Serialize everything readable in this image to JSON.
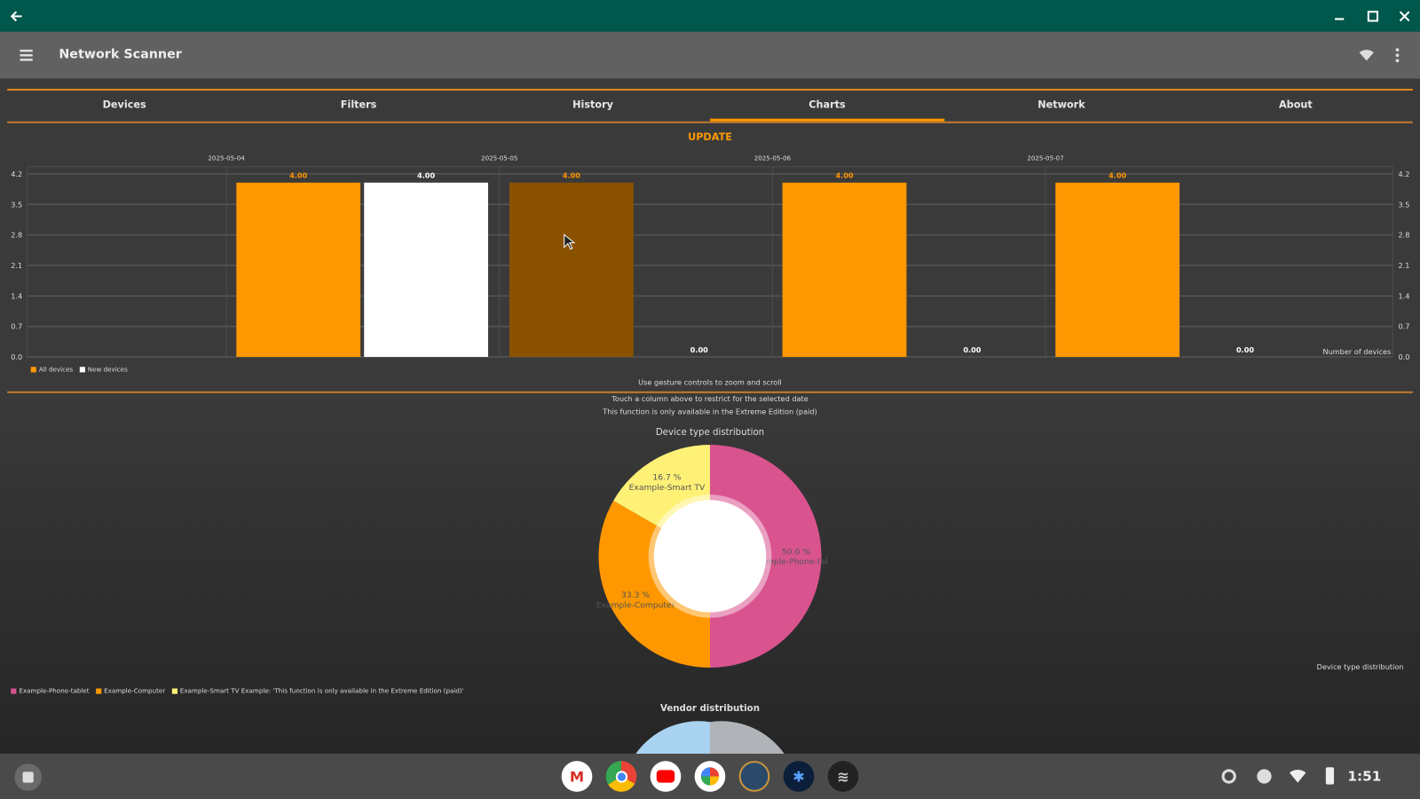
{
  "window": {
    "back_icon": "arrow-left",
    "controls": [
      "minimize",
      "maximize",
      "close"
    ]
  },
  "appbar": {
    "title": "Network Scanner",
    "menu_icon": "hamburger",
    "wifi_icon": "wifi",
    "more_icon": "more-vertical"
  },
  "tabs": [
    {
      "label": "Devices"
    },
    {
      "label": "Filters"
    },
    {
      "label": "History"
    },
    {
      "label": "Charts",
      "active": true
    },
    {
      "label": "Network"
    },
    {
      "label": "About"
    }
  ],
  "update_label": "UPDATE",
  "chart_data": [
    {
      "type": "bar",
      "title": "",
      "categories": [
        "2025-05-04",
        "2025-05-05",
        "2025-05-06",
        "2025-05-07"
      ],
      "series": [
        {
          "name": "All devices",
          "color": "#ff9800",
          "values": [
            4,
            4,
            4,
            4
          ],
          "labels": [
            "4.00",
            "4.00",
            "4.00",
            "4.00"
          ]
        },
        {
          "name": "New devices",
          "color": "#ffffff",
          "values": [
            4,
            0,
            0,
            0
          ],
          "labels": [
            "4.00",
            "0.00",
            "0.00",
            "0.00"
          ]
        }
      ],
      "highlighted": {
        "series": 0,
        "index": 1,
        "color": "#8a5200"
      },
      "ylabel": "Number of devices",
      "ylim": [
        0,
        4.2
      ],
      "yticks": [
        "0.0",
        "0.7",
        "1.4",
        "2.1",
        "2.8",
        "3.5",
        "4.2"
      ],
      "grid": true,
      "legend": "bottom-left"
    },
    {
      "type": "pie",
      "title": "Device type distribution",
      "slices": [
        {
          "name": "Example-Phone-tablet",
          "value": 50.0,
          "label": "50.0 %",
          "color": "#d9538f"
        },
        {
          "name": "Example-Computer",
          "value": 33.3,
          "label": "33.3 %",
          "color": "#ff9800"
        },
        {
          "name": "Example-Smart TV",
          "value": 16.7,
          "label": "16.7 %",
          "color": "#fff176"
        }
      ],
      "legend_extra": "Example: 'This function is only available in the Extreme Edition (paid)'",
      "description": "Device type distribution",
      "legend": "bottom-left"
    },
    {
      "type": "pie",
      "title": "Vendor distribution",
      "slices": [
        {
          "name": "",
          "value": 50,
          "color": "#a9d3f0"
        },
        {
          "name": "",
          "value": 50,
          "color": "#b0b4b8"
        }
      ]
    }
  ],
  "info": {
    "gesture": "Use gesture controls to zoom and scroll",
    "touch": "Touch a column above to restrict for the selected date",
    "paid": "This function is only available in the Extreme Edition (paid)"
  },
  "taskbar": {
    "apps": [
      "Gmail",
      "Chrome",
      "YouTube",
      "Photos",
      "App 1",
      "App 2",
      "Network Scanner"
    ],
    "time": "1:51"
  }
}
